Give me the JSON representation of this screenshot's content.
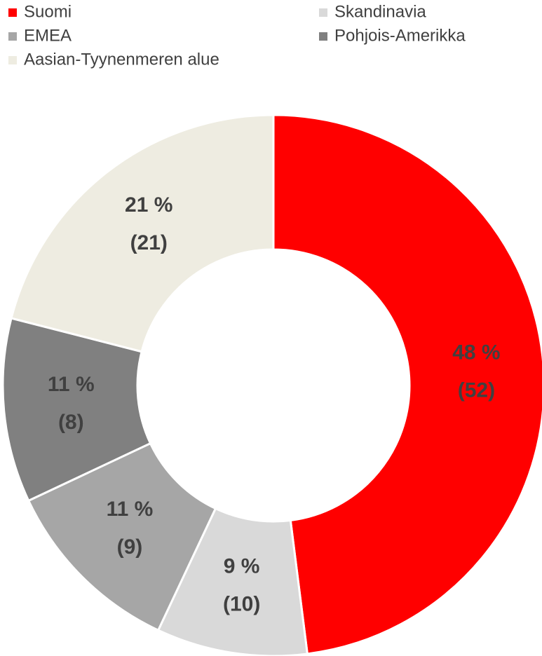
{
  "chart_data": {
    "type": "donut",
    "categories": [
      "Suomi",
      "Skandinavia",
      "EMEA",
      "Pohjois-Amerikka",
      "Aasian-Tyynenmeren alue"
    ],
    "values": [
      48,
      9,
      11,
      11,
      21
    ],
    "value_labels": [
      "48 %",
      "9 %",
      "11 %",
      "11 %",
      "21 %"
    ],
    "secondary_labels": [
      "(52)",
      "(10)",
      "(9)",
      "(8)",
      "(21)"
    ],
    "colors": [
      "#ff0000",
      "#d9d9d9",
      "#a6a6a6",
      "#808080",
      "#eeece1"
    ],
    "legend": "top"
  }
}
